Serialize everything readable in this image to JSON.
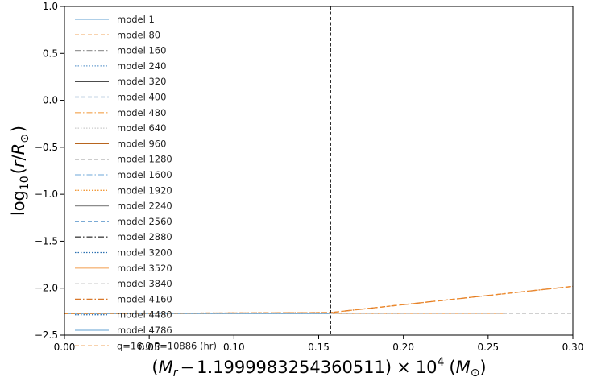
{
  "chart_data": {
    "type": "line",
    "title": "",
    "xlabel": "(M_r − 1.1999983254360511) × 10^4 (M_⊙)",
    "xlabel_parts": {
      "open": "(",
      "m": "M",
      "r": "r",
      "minus": "−",
      "const": "1.1999983254360511",
      "close": ")",
      "times": "×",
      "ten": "10",
      "exp": "4",
      "unit_open": "(",
      "unit_m": "M",
      "unit_sun": "⊙",
      "unit_close": ")"
    },
    "ylabel": "log10(r/R_⊙)",
    "ylabel_parts": {
      "log": "log",
      "sub": "10",
      "open": "(",
      "r": "r",
      "slash": "/",
      "R": "R",
      "sun": "⊙",
      "close": ")"
    },
    "xlim": [
      0.0,
      0.3
    ],
    "ylim": [
      -2.5,
      1.0
    ],
    "xticks": [
      0.0,
      0.05,
      0.1,
      0.15,
      0.2,
      0.25,
      0.3
    ],
    "xtick_labels": [
      "0.00",
      "0.05",
      "0.10",
      "0.15",
      "0.20",
      "0.25",
      "0.30"
    ],
    "yticks": [
      1.0,
      0.5,
      0.0,
      -0.5,
      -1.0,
      -1.5,
      -2.0,
      -2.5
    ],
    "ytick_labels": [
      "1.0",
      "0.5",
      "0.0",
      "−0.5",
      "−1.0",
      "−1.5",
      "−2.0",
      "−2.5"
    ],
    "grid": false,
    "legend_position": "upper-left",
    "vline": {
      "x": 0.157,
      "color": "#000000",
      "style": "dashed"
    },
    "series": [
      {
        "name": "model 1",
        "color": "#7fb2d9",
        "dash": "solid",
        "x": [
          0.0,
          0.17
        ],
        "y": [
          -2.27,
          -2.27
        ]
      },
      {
        "name": "model 80",
        "color": "#ee8a2b",
        "dash": "dashed",
        "x": [
          0.0,
          0.157
        ],
        "y": [
          -2.27,
          -2.27
        ]
      },
      {
        "name": "model 160",
        "color": "#999999",
        "dash": "dashdot",
        "x": [
          0.0,
          0.157
        ],
        "y": [
          -2.27,
          -2.27
        ]
      },
      {
        "name": "model 240",
        "color": "#6a9fd0",
        "dash": "dotted",
        "x": [
          0.0,
          0.157
        ],
        "y": [
          -2.27,
          -2.27
        ]
      },
      {
        "name": "model 320",
        "color": "#333333",
        "dash": "solid",
        "x": [
          0.0,
          0.157
        ],
        "y": [
          -2.27,
          -2.27
        ]
      },
      {
        "name": "model 400",
        "color": "#1f5a9a",
        "dash": "dashed",
        "x": [
          0.0,
          0.157
        ],
        "y": [
          -2.27,
          -2.27
        ]
      },
      {
        "name": "model 480",
        "color": "#f5b26b",
        "dash": "dashdot",
        "x": [
          0.0,
          0.157
        ],
        "y": [
          -2.27,
          -2.27
        ]
      },
      {
        "name": "model 640",
        "color": "#cccccc",
        "dash": "dotted",
        "x": [
          0.0,
          0.157
        ],
        "y": [
          -2.27,
          -2.27
        ]
      },
      {
        "name": "model 960",
        "color": "#b8651e",
        "dash": "solid",
        "x": [
          0.0,
          0.157
        ],
        "y": [
          -2.27,
          -2.27
        ]
      },
      {
        "name": "model 1280",
        "color": "#777777",
        "dash": "dashed",
        "x": [
          0.0,
          0.157
        ],
        "y": [
          -2.27,
          -2.27
        ]
      },
      {
        "name": "model 1600",
        "color": "#8ab9e0",
        "dash": "dashdot",
        "x": [
          0.0,
          0.157
        ],
        "y": [
          -2.27,
          -2.27
        ]
      },
      {
        "name": "model 1920",
        "color": "#f29a3a",
        "dash": "dotted",
        "x": [
          0.0,
          0.157
        ],
        "y": [
          -2.27,
          -2.27
        ]
      },
      {
        "name": "model 2240",
        "color": "#8c8c8c",
        "dash": "solid",
        "x": [
          0.0,
          0.157
        ],
        "y": [
          -2.27,
          -2.27
        ]
      },
      {
        "name": "model 2560",
        "color": "#4f8ec7",
        "dash": "dashed",
        "x": [
          0.0,
          0.157
        ],
        "y": [
          -2.27,
          -2.27
        ]
      },
      {
        "name": "model 2880",
        "color": "#444444",
        "dash": "dashdot",
        "x": [
          0.0,
          0.157
        ],
        "y": [
          -2.27,
          -2.27
        ]
      },
      {
        "name": "model 3200",
        "color": "#2a6fb0",
        "dash": "dotted",
        "x": [
          0.0,
          0.2
        ],
        "y": [
          -2.27,
          -2.27
        ]
      },
      {
        "name": "model 3520",
        "color": "#f6b77c",
        "dash": "solid",
        "x": [
          0.0,
          0.26
        ],
        "y": [
          -2.27,
          -2.27
        ]
      },
      {
        "name": "model 3840",
        "color": "#c9c9c9",
        "dash": "dashed",
        "x": [
          0.0,
          0.3
        ],
        "y": [
          -2.27,
          -2.27
        ]
      },
      {
        "name": "model 4160",
        "color": "#d9782a",
        "dash": "dashdot",
        "x": [
          0.0,
          0.157,
          0.3
        ],
        "y": [
          -2.27,
          -2.26,
          -1.98
        ]
      },
      {
        "name": "model 4480",
        "color": "#3c7fbf",
        "dash": "dotted",
        "x": [
          0.0,
          0.157
        ],
        "y": [
          -2.27,
          -2.27
        ]
      },
      {
        "name": "model 4786",
        "color": "#7fb2d9",
        "dash": "solid",
        "x": [
          0.0,
          0.157
        ],
        "y": [
          -2.27,
          -2.27
        ]
      },
      {
        "name": "q=16.0 P=10886 (hr)",
        "color": "#ee8a2b",
        "dash": "dashed",
        "x": [
          0.0,
          0.157,
          0.3
        ],
        "y": [
          -2.27,
          -2.26,
          -1.98
        ]
      }
    ]
  }
}
